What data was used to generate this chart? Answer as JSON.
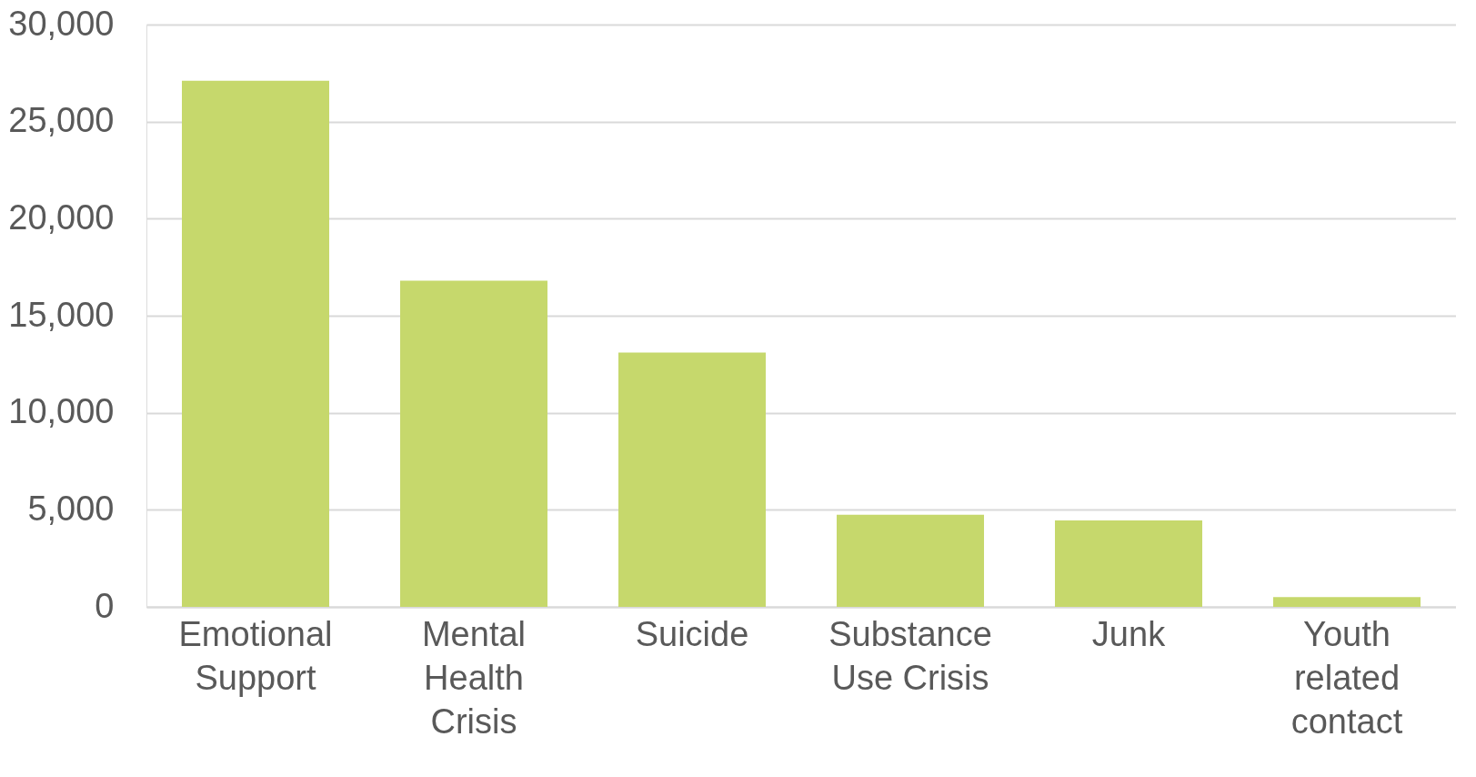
{
  "chart_data": {
    "type": "bar",
    "categories": [
      "Emotional Support",
      "Mental Health Crisis",
      "Suicide",
      "Substance Use Crisis",
      "Junk",
      "Youth related contact"
    ],
    "values": [
      27100,
      16800,
      13100,
      4750,
      4450,
      500
    ],
    "color": "#c6d86c",
    "ylim": [
      0,
      30000
    ],
    "yticks": [
      0,
      {
        "value": 5000,
        "label": "5,000"
      },
      {
        "value": 10000,
        "label": "10,000"
      },
      {
        "value": 15000,
        "label": "15,000"
      },
      {
        "value": 20000,
        "label": "20,000"
      },
      {
        "value": 25000,
        "label": "25,000"
      },
      {
        "value": 30000,
        "label": "30,000"
      }
    ],
    "grid": "y"
  }
}
